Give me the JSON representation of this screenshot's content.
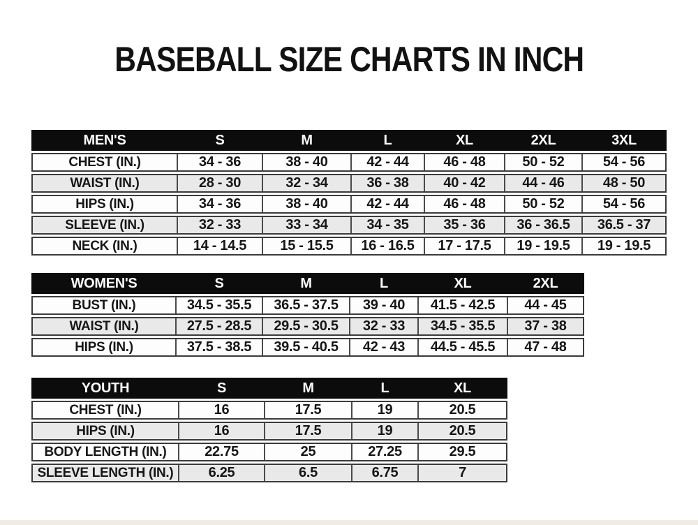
{
  "title": "BASEBALL SIZE CHARTS IN INCH",
  "chart_data": [
    {
      "type": "table",
      "name": "MEN'S",
      "size_headers": [
        "S",
        "M",
        "L",
        "XL",
        "2XL",
        "3XL"
      ],
      "rows": [
        {
          "label": "CHEST (IN.)",
          "values": [
            "34 - 36",
            "38 - 40",
            "42 - 44",
            "46 - 48",
            "50 - 52",
            "54 - 56"
          ]
        },
        {
          "label": "WAIST (IN.)",
          "values": [
            "28 - 30",
            "32 - 34",
            "36 - 38",
            "40 - 42",
            "44 - 46",
            "48 - 50"
          ]
        },
        {
          "label": "HIPS (IN.)",
          "values": [
            "34 - 36",
            "38 - 40",
            "42 - 44",
            "46 - 48",
            "50 - 52",
            "54 - 56"
          ]
        },
        {
          "label": "SLEEVE (IN.)",
          "values": [
            "32 - 33",
            "33 - 34",
            "34 - 35",
            "35 - 36",
            "36 - 36.5",
            "36.5 - 37"
          ]
        },
        {
          "label": "NECK (IN.)",
          "values": [
            "14 - 14.5",
            "15 - 15.5",
            "16 - 16.5",
            "17 - 17.5",
            "19 - 19.5",
            "19 - 19.5"
          ]
        }
      ]
    },
    {
      "type": "table",
      "name": "WOMEN'S",
      "size_headers": [
        "S",
        "M",
        "L",
        "XL",
        "2XL"
      ],
      "rows": [
        {
          "label": "BUST (IN.)",
          "values": [
            "34.5 - 35.5",
            "36.5 - 37.5",
            "39 - 40",
            "41.5 - 42.5",
            "44 - 45"
          ]
        },
        {
          "label": "WAIST (IN.)",
          "values": [
            "27.5 - 28.5",
            "29.5 - 30.5",
            "32 - 33",
            "34.5 - 35.5",
            "37 - 38"
          ]
        },
        {
          "label": "HIPS (IN.)",
          "values": [
            "37.5 - 38.5",
            "39.5 - 40.5",
            "42 - 43",
            "44.5 - 45.5",
            "47 - 48"
          ]
        }
      ]
    },
    {
      "type": "table",
      "name": "YOUTH",
      "size_headers": [
        "S",
        "M",
        "L",
        "XL"
      ],
      "rows": [
        {
          "label": "CHEST (IN.)",
          "values": [
            "16",
            "17.5",
            "19",
            "20.5"
          ]
        },
        {
          "label": "HIPS (IN.)",
          "values": [
            "16",
            "17.5",
            "19",
            "20.5"
          ]
        },
        {
          "label": "BODY LENGTH (IN.)",
          "values": [
            "22.75",
            "25",
            "27.25",
            "29.5"
          ]
        },
        {
          "label": "SLEEVE LENGTH (IN.)",
          "values": [
            "6.25",
            "6.5",
            "6.75",
            "7"
          ]
        }
      ]
    }
  ],
  "colors": {
    "header_bg": "#0c0c0c",
    "header_text": "#fafafa",
    "row_alt_bg": "#e9e9e9",
    "row_bg": "#fdfdfd",
    "border": "#3b3b3b",
    "text": "#161616",
    "page_bg": "#ffffff"
  }
}
